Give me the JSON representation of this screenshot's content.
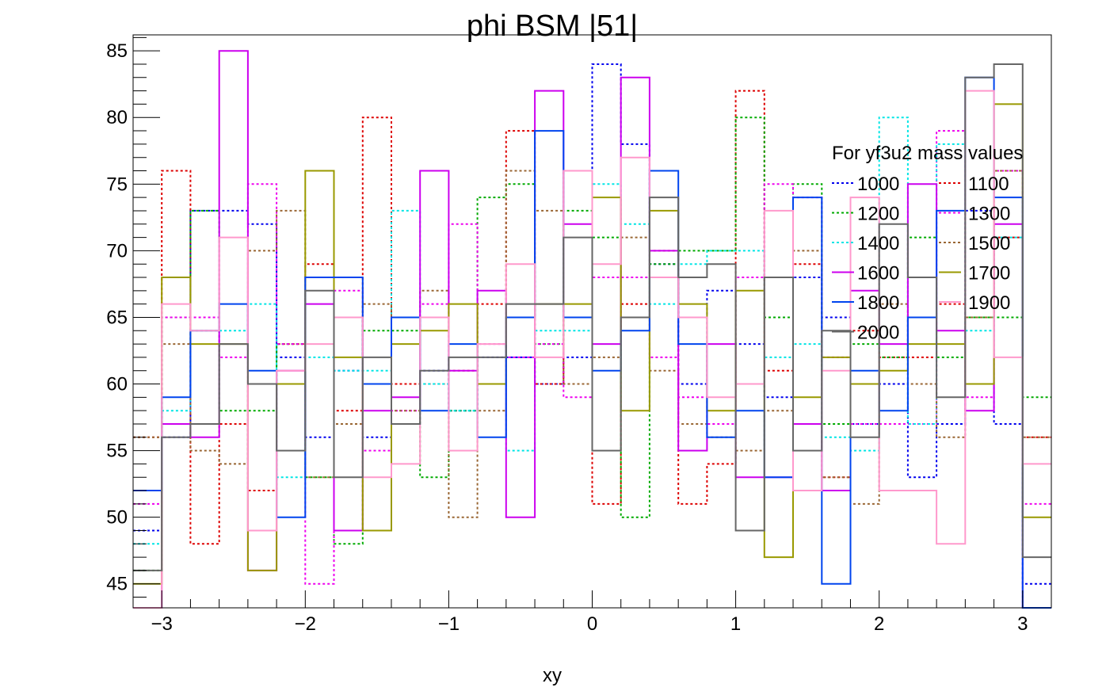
{
  "chart_data": {
    "type": "line",
    "title": "phi BSM |51|",
    "xlabel": "xy",
    "ylabel": "",
    "xlim": [
      -3.2,
      3.2
    ],
    "ylim": [
      43.2,
      86.2
    ],
    "x_ticks": [
      "−3",
      "−2",
      "−1",
      "0",
      "1",
      "2",
      "3"
    ],
    "x_tick_values": [
      -3,
      -2,
      -1,
      0,
      1,
      2,
      3
    ],
    "y_ticks": [
      "45",
      "50",
      "55",
      "60",
      "65",
      "70",
      "75",
      "80",
      "85"
    ],
    "y_tick_values": [
      45,
      50,
      55,
      60,
      65,
      70,
      75,
      80,
      85
    ],
    "bin_edges": [
      -3.2,
      -3.0,
      -2.8,
      -2.6,
      -2.4,
      -2.2,
      -2.0,
      -1.8,
      -1.6,
      -1.4,
      -1.2,
      -1.0,
      -0.8,
      -0.6,
      -0.4,
      -0.2,
      0.0,
      0.2,
      0.4,
      0.6,
      0.8,
      1.0,
      1.2,
      1.4,
      1.6,
      1.8,
      2.0,
      2.2,
      2.4,
      2.6,
      2.8,
      3.0,
      3.2
    ],
    "legend": {
      "title": "For yf3u2 mass values",
      "position": "top-right",
      "columns": 2
    },
    "grid": false,
    "series": [
      {
        "name": "1000",
        "color": "#0000ee",
        "dashed": true,
        "values": [
          49,
          56,
          73,
          73,
          72,
          62,
          56,
          61,
          56,
          57,
          61,
          58,
          62,
          62,
          60,
          62,
          84,
          78,
          69,
          60,
          67,
          63,
          59,
          68,
          65,
          57,
          60,
          53,
          57,
          73,
          57,
          45
        ]
      },
      {
        "name": "1100",
        "color": "#dd0000",
        "dashed": true,
        "values": [
          56,
          76,
          48,
          57,
          52,
          63,
          69,
          58,
          80,
          60,
          60,
          61,
          66,
          79,
          60,
          76,
          51,
          66,
          70,
          51,
          54,
          82,
          61,
          69,
          53,
          64,
          62,
          62,
          66,
          65,
          71,
          56
        ]
      },
      {
        "name": "1200",
        "color": "#00aa00",
        "dashed": true,
        "values": [
          46,
          65,
          73,
          58,
          58,
          63,
          53,
          48,
          64,
          64,
          53,
          58,
          74,
          75,
          63,
          73,
          71,
          50,
          69,
          70,
          70,
          80,
          65,
          75,
          57,
          63,
          62,
          71,
          62,
          65,
          65,
          59
        ]
      },
      {
        "name": "1300",
        "color": "#ee00ee",
        "dashed": true,
        "values": [
          51,
          65,
          65,
          62,
          75,
          63,
          45,
          67,
          55,
          58,
          66,
          72,
          63,
          62,
          63,
          59,
          68,
          68,
          62,
          59,
          57,
          68,
          75,
          74,
          62,
          57,
          57,
          57,
          79,
          59,
          76,
          51
        ]
      },
      {
        "name": "1400",
        "color": "#00e5e5",
        "dashed": true,
        "values": [
          48,
          58,
          64,
          64,
          66,
          53,
          62,
          61,
          61,
          73,
          60,
          58,
          60,
          55,
          64,
          64,
          75,
          72,
          66,
          69,
          70,
          70,
          62,
          63,
          56,
          55,
          80,
          57,
          78,
          64,
          71,
          43
        ]
      },
      {
        "name": "1500",
        "color": "#996633",
        "dashed": true,
        "values": [
          56,
          63,
          55,
          54,
          70,
          73,
          53,
          57,
          66,
          58,
          67,
          50,
          58,
          76,
          73,
          60,
          62,
          71,
          61,
          57,
          56,
          55,
          58,
          70,
          53,
          51,
          66,
          60,
          56,
          65,
          76,
          56
        ]
      },
      {
        "name": "1600",
        "color": "#cc00ee",
        "dashed": false,
        "values": [
          43,
          57,
          56,
          85,
          46,
          61,
          66,
          49,
          58,
          59,
          76,
          61,
          67,
          50,
          82,
          72,
          63,
          83,
          70,
          55,
          63,
          53,
          53,
          57,
          52,
          67,
          63,
          75,
          64,
          58,
          72,
          43
        ]
      },
      {
        "name": "1700",
        "color": "#999900",
        "dashed": false,
        "values": [
          45,
          68,
          63,
          63,
          46,
          60,
          76,
          62,
          49,
          63,
          64,
          66,
          60,
          65,
          66,
          66,
          74,
          58,
          73,
          66,
          58,
          67,
          47,
          59,
          62,
          60,
          61,
          63,
          63,
          60,
          81,
          50
        ]
      },
      {
        "name": "1800",
        "color": "#0044ee",
        "dashed": false,
        "values": [
          52,
          59,
          64,
          66,
          61,
          50,
          68,
          68,
          60,
          65,
          58,
          63,
          56,
          65,
          79,
          65,
          61,
          64,
          76,
          63,
          56,
          58,
          53,
          74,
          45,
          61,
          58,
          65,
          73,
          83,
          74,
          43
        ]
      },
      {
        "name": "1900",
        "color": "#ff99cc",
        "dashed": false,
        "values": [
          43,
          66,
          64,
          71,
          49,
          61,
          63,
          65,
          53,
          54,
          65,
          55,
          63,
          69,
          62,
          76,
          69,
          77,
          68,
          65,
          59,
          60,
          73,
          52,
          61,
          74,
          52,
          52,
          48,
          82,
          62,
          54
        ]
      },
      {
        "name": "2000",
        "color": "#666666",
        "dashed": false,
        "values": [
          46,
          56,
          57,
          63,
          60,
          55,
          67,
          53,
          62,
          57,
          61,
          62,
          62,
          66,
          66,
          71,
          55,
          65,
          74,
          68,
          69,
          49,
          68,
          55,
          64,
          56,
          72,
          68,
          59,
          83,
          84,
          47
        ]
      }
    ]
  }
}
